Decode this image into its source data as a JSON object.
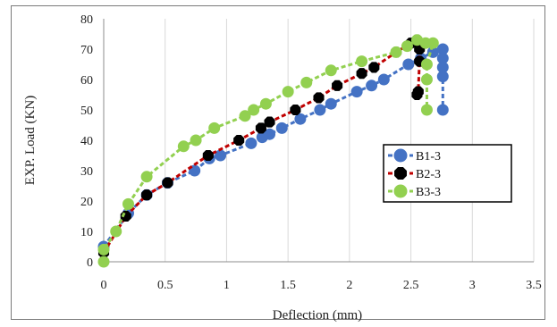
{
  "chart_data": {
    "type": "scatter",
    "title": "",
    "xlabel": "Deflection (mm)",
    "ylabel": "EXP. Load (KN)",
    "xlim": [
      0,
      3.5
    ],
    "ylim": [
      0,
      80
    ],
    "x_ticks": [
      "0",
      "0.5",
      "1",
      "1.5",
      "2",
      "2.5",
      "3",
      "3.5"
    ],
    "y_ticks": [
      "0",
      "10",
      "20",
      "30",
      "40",
      "50",
      "60",
      "70",
      "80"
    ],
    "grid": "vertical",
    "legend_position": "right",
    "series": [
      {
        "name": "B1-3",
        "color": "#4472c4",
        "marker": "circle",
        "points": [
          [
            0,
            5
          ],
          [
            0.2,
            16
          ],
          [
            0.35,
            22
          ],
          [
            0.52,
            26
          ],
          [
            0.74,
            30
          ],
          [
            0.86,
            34
          ],
          [
            0.95,
            35
          ],
          [
            1.2,
            39
          ],
          [
            1.29,
            41
          ],
          [
            1.35,
            42
          ],
          [
            1.45,
            44
          ],
          [
            1.6,
            47
          ],
          [
            1.76,
            50
          ],
          [
            1.85,
            52
          ],
          [
            2.06,
            56
          ],
          [
            2.18,
            58
          ],
          [
            2.28,
            60
          ],
          [
            2.48,
            65
          ],
          [
            2.58,
            67
          ],
          [
            2.68,
            69
          ],
          [
            2.76,
            70
          ],
          [
            2.76,
            67
          ],
          [
            2.76,
            64
          ],
          [
            2.76,
            61
          ],
          [
            2.76,
            50
          ]
        ]
      },
      {
        "name": "B2-3",
        "color": "#c00000",
        "marker": "octagon",
        "points": [
          [
            0,
            3
          ],
          [
            0.18,
            15
          ],
          [
            0.35,
            22
          ],
          [
            0.52,
            26
          ],
          [
            0.85,
            35
          ],
          [
            1.1,
            40
          ],
          [
            1.28,
            44
          ],
          [
            1.35,
            46
          ],
          [
            1.56,
            50
          ],
          [
            1.75,
            54
          ],
          [
            1.9,
            58
          ],
          [
            2.1,
            62
          ],
          [
            2.2,
            64
          ],
          [
            2.38,
            69
          ],
          [
            2.5,
            72
          ],
          [
            2.55,
            73
          ],
          [
            2.57,
            70
          ],
          [
            2.57,
            66
          ],
          [
            2.56,
            56
          ],
          [
            2.55,
            55
          ]
        ]
      },
      {
        "name": "B3-3",
        "color": "#92d050",
        "marker": "circle",
        "points": [
          [
            0,
            0
          ],
          [
            0,
            4
          ],
          [
            0.1,
            10
          ],
          [
            0.2,
            19
          ],
          [
            0.35,
            28
          ],
          [
            0.65,
            38
          ],
          [
            0.75,
            40
          ],
          [
            0.9,
            44
          ],
          [
            1.15,
            48
          ],
          [
            1.22,
            50
          ],
          [
            1.32,
            52
          ],
          [
            1.5,
            56
          ],
          [
            1.65,
            59
          ],
          [
            1.85,
            63
          ],
          [
            2.1,
            66
          ],
          [
            2.38,
            69
          ],
          [
            2.47,
            71
          ],
          [
            2.55,
            73
          ],
          [
            2.62,
            72
          ],
          [
            2.68,
            72
          ],
          [
            2.63,
            65
          ],
          [
            2.63,
            60
          ],
          [
            2.63,
            50
          ]
        ]
      }
    ]
  }
}
